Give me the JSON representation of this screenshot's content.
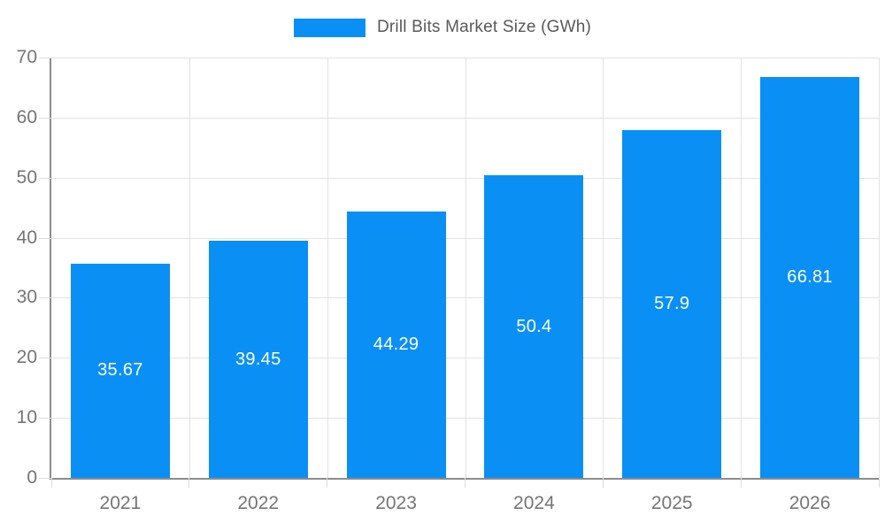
{
  "legend": {
    "label": "Drill Bits Market Size (GWh)"
  },
  "chart_data": {
    "type": "bar",
    "title": "Drill Bits Market Size (GWh)",
    "categories": [
      "2021",
      "2022",
      "2023",
      "2024",
      "2025",
      "2026"
    ],
    "values": [
      35.67,
      39.45,
      44.29,
      50.4,
      57.9,
      66.81
    ],
    "value_labels": [
      "35.67",
      "39.45",
      "44.29",
      "50.4",
      "57.9",
      "66.81"
    ],
    "ytick_labels": [
      "0",
      "10",
      "20",
      "30",
      "40",
      "50",
      "60",
      "70"
    ],
    "ylim": [
      0,
      70
    ],
    "ytick_step": 10,
    "grid": true,
    "legend_position": "top",
    "xlabel": "",
    "ylabel": "",
    "colors": {
      "bar": "#0a90f5",
      "value_label": "#ffffff",
      "axis": "#8c8c8c",
      "grid": "#e3e3e3",
      "tick": "#dcdcdc",
      "tick_label": "#757575",
      "legend_text": "#595959"
    }
  }
}
